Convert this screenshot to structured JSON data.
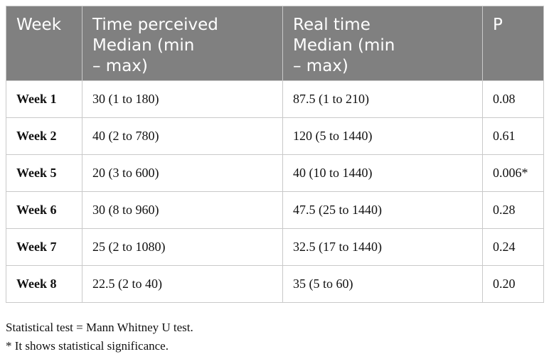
{
  "table": {
    "header": [
      [
        "Week"
      ],
      [
        "Time perceived",
        "Median (min",
        "– max)"
      ],
      [
        "Real time",
        "Median (min",
        "– max)"
      ],
      [
        "P"
      ]
    ],
    "rows": [
      [
        "Week 1",
        "30 (1 to 180)",
        "87.5 (1 to 210)",
        "0.08"
      ],
      [
        "Week 2",
        "40 (2 to 780)",
        "120 (5 to 1440)",
        "0.61"
      ],
      [
        "Week 5",
        "20 (3 to 600)",
        "40 (10 to 1440)",
        "0.006*"
      ],
      [
        "Week 6",
        "30 (8 to 960)",
        "47.5 (25 to 1440)",
        "0.28"
      ],
      [
        "Week 7",
        "25 (2 to 1080)",
        "32.5 (17 to 1440)",
        "0.24"
      ],
      [
        "Week 8",
        "22.5 (2 to 40)",
        "35 (5 to 60)",
        "0.20"
      ]
    ]
  },
  "footnotes": [
    "Statistical test = Mann Whitney U test.",
    "* It shows statistical significance."
  ]
}
